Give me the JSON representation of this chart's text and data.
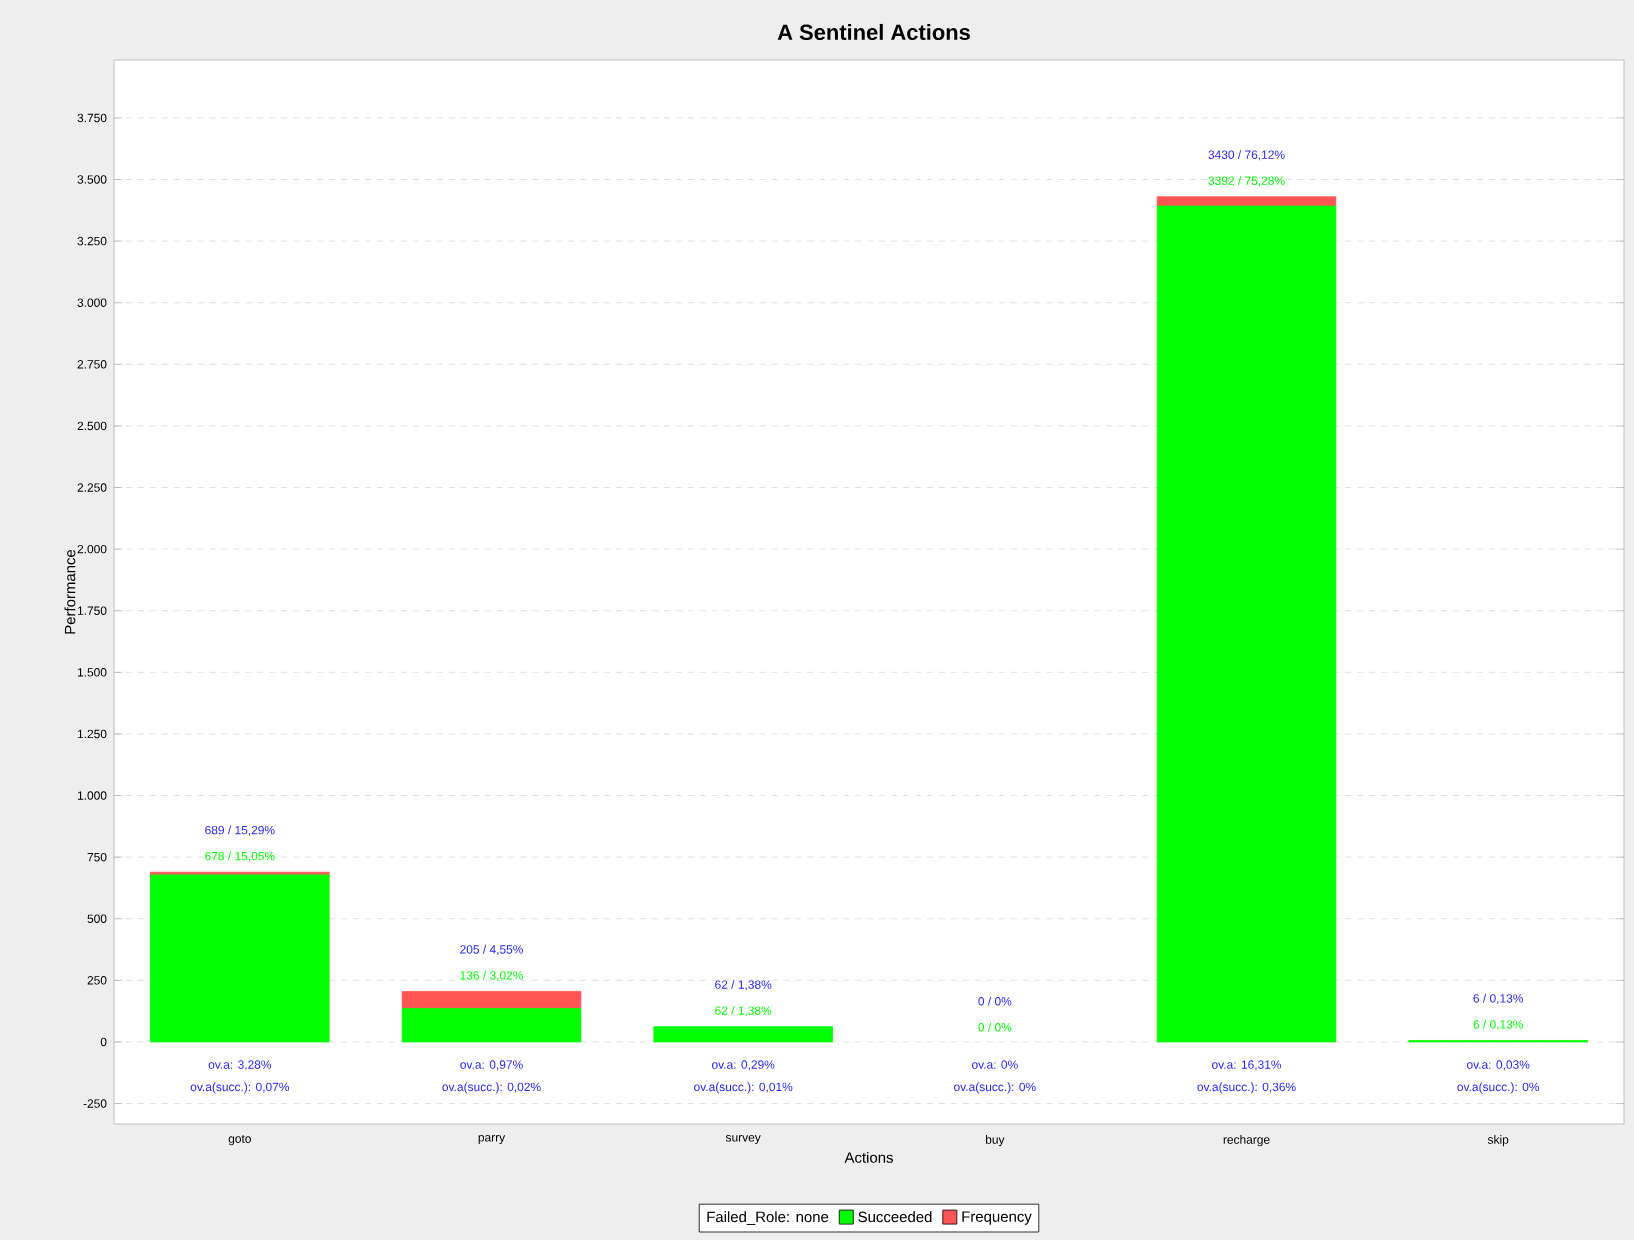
{
  "chart_data": {
    "type": "bar",
    "title": "A Sentinel Actions",
    "xlabel": "Actions",
    "ylabel": "Performance",
    "legend_title": "Failed_Role: none",
    "categories": [
      "goto",
      "parry",
      "survey",
      "buy",
      "recharge",
      "skip"
    ],
    "series": [
      {
        "name": "Succeeded",
        "color": "#00ff00",
        "values": [
          678,
          136,
          62,
          0,
          3392,
          6
        ],
        "value_labels": [
          "678 / 15,05%",
          "136 / 3,02%",
          "62 / 1,38%",
          "0 / 0%",
          "3392 / 75,28%",
          "6 / 0,13%"
        ]
      },
      {
        "name": "Frequency",
        "color": "#ff5555",
        "values": [
          11,
          69,
          0,
          0,
          38,
          0
        ]
      }
    ],
    "stacked": true,
    "totals": [
      "689 / 15,29%",
      "205 / 4,55%",
      "62 / 1,38%",
      "0 / 0%",
      "3430 / 76,12%",
      "6 / 0,13%"
    ],
    "ylim": [
      -333,
      3985
    ],
    "yticks": [
      -250,
      0,
      250,
      500,
      750,
      {
        "value": 1000,
        "label": "1.000"
      },
      {
        "value": 1250,
        "label": "1.250"
      },
      {
        "value": 1500,
        "label": "1.500"
      },
      {
        "value": 1750,
        "label": "1.750"
      },
      {
        "value": 2000,
        "label": "2.000"
      },
      {
        "value": 2250,
        "label": "2.250"
      },
      {
        "value": 2500,
        "label": "2.500"
      },
      {
        "value": 2750,
        "label": "2.750"
      },
      {
        "value": 3000,
        "label": "3.000"
      },
      {
        "value": 3250,
        "label": "3.250"
      },
      {
        "value": 3500,
        "label": "3.500"
      },
      {
        "value": 3750,
        "label": "3.750"
      }
    ],
    "grid": "y",
    "legend": "bottom",
    "annotations": [
      "ov.a: 3,28%",
      "ov.a(succ.): 0,07%",
      "ov.a: 0,97%",
      "ov.a(succ.): 0,02%",
      "ov.a: 0,29%",
      "ov.a(succ.): 0,01%",
      "ov.a: 0%",
      "ov.a(succ.): 0%",
      "ov.a: 16,31%",
      "ov.a(succ.): 0,36%",
      "ov.a: 0,03%",
      "ov.a(succ.): 0%"
    ]
  }
}
